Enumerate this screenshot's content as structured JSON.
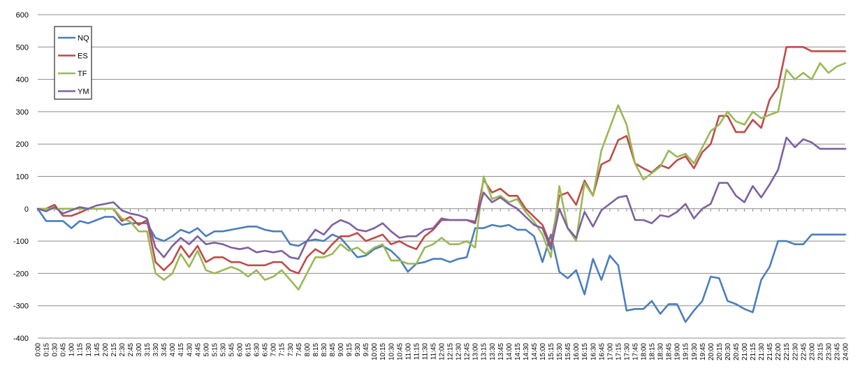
{
  "chart_data": {
    "type": "line",
    "title": "",
    "xlabel": "",
    "ylabel": "",
    "ylim": [
      -400,
      600
    ],
    "yticks": [
      -400,
      -300,
      -200,
      -100,
      0,
      100,
      200,
      300,
      400,
      500,
      600
    ],
    "grid": true,
    "legend_position": "top-left",
    "x": [
      "0:00",
      "0:15",
      "0:30",
      "0:45",
      "1:00",
      "1:15",
      "1:30",
      "1:45",
      "2:00",
      "2:15",
      "2:30",
      "2:45",
      "3:00",
      "3:15",
      "3:30",
      "3:45",
      "4:00",
      "4:15",
      "4:30",
      "4:45",
      "5:00",
      "5:15",
      "5:30",
      "5:45",
      "6:00",
      "6:15",
      "6:30",
      "6:45",
      "7:00",
      "7:15",
      "7:30",
      "7:45",
      "8:00",
      "8:15",
      "8:30",
      "8:45",
      "9:00",
      "9:15",
      "9:30",
      "9:45",
      "10:00",
      "10:15",
      "10:30",
      "10:45",
      "11:00",
      "11:15",
      "11:30",
      "11:45",
      "12:00",
      "12:15",
      "12:30",
      "12:45",
      "13:00",
      "13:15",
      "13:30",
      "13:45",
      "14:00",
      "14:15",
      "14:30",
      "14:45",
      "15:00",
      "15:15",
      "15:30",
      "15:45",
      "16:00",
      "16:15",
      "16:30",
      "16:45",
      "17:00",
      "17:15",
      "17:30",
      "17:45",
      "18:00",
      "18:15",
      "18:30",
      "18:45",
      "19:00",
      "19:15",
      "19:30",
      "19:45",
      "20:00",
      "20:15",
      "20:30",
      "20:45",
      "21:00",
      "21:15",
      "21:30",
      "21:45",
      "22:00",
      "22:15",
      "22:30",
      "22:45",
      "23:00",
      "23:15",
      "23:30",
      "23:45",
      "24:00"
    ],
    "series": [
      {
        "name": "NQ",
        "color": "#4a7ebb",
        "values": [
          0,
          -38,
          -38,
          -38,
          -60,
          -38,
          -45,
          -35,
          -25,
          -25,
          -50,
          -45,
          -45,
          -45,
          -90,
          -100,
          -85,
          -65,
          -75,
          -60,
          -85,
          -70,
          -70,
          -65,
          -60,
          -55,
          -55,
          -65,
          -70,
          -70,
          -110,
          -115,
          -100,
          -95,
          -100,
          -80,
          -90,
          -120,
          -150,
          -145,
          -125,
          -115,
          -130,
          -155,
          -195,
          -170,
          -165,
          -155,
          -155,
          -165,
          -155,
          -150,
          -60,
          -60,
          -50,
          -55,
          -50,
          -65,
          -65,
          -85,
          -165,
          -80,
          -195,
          -215,
          -190,
          -265,
          -155,
          -220,
          -145,
          -175,
          -315,
          -310,
          -310,
          -285,
          -325,
          -295,
          -295,
          -350,
          -315,
          -285,
          -210,
          -215,
          -285,
          -295,
          -310,
          -320,
          -220,
          -180,
          -100,
          -100,
          -110,
          -110,
          -80,
          -80,
          -80,
          -80,
          -80
        ]
      },
      {
        "name": "ES",
        "color": "#be4b48",
        "values": [
          0,
          0,
          12,
          -22,
          -22,
          -12,
          0,
          0,
          0,
          0,
          -38,
          -25,
          -50,
          -35,
          -165,
          -190,
          -165,
          -115,
          -150,
          -115,
          -165,
          -150,
          -150,
          -165,
          -165,
          -175,
          -175,
          -175,
          -165,
          -165,
          -190,
          -200,
          -150,
          -125,
          -140,
          -110,
          -85,
          -85,
          -75,
          -100,
          -90,
          -80,
          -110,
          -100,
          -115,
          -125,
          -85,
          -65,
          -35,
          -35,
          -35,
          -35,
          -45,
          90,
          50,
          62,
          40,
          40,
          0,
          -25,
          -50,
          -115,
          40,
          50,
          12,
          87,
          40,
          137,
          150,
          212,
          225,
          140,
          125,
          112,
          135,
          125,
          150,
          162,
          125,
          175,
          200,
          287,
          287,
          237,
          237,
          275,
          250,
          337,
          375,
          500,
          500,
          500,
          487,
          487,
          487,
          487,
          487
        ]
      },
      {
        "name": "TF",
        "color": "#98b954",
        "values": [
          0,
          0,
          0,
          0,
          0,
          0,
          0,
          0,
          0,
          0,
          -30,
          -40,
          -70,
          -70,
          -200,
          -220,
          -200,
          -140,
          -180,
          -130,
          -190,
          -200,
          -190,
          -180,
          -190,
          -210,
          -190,
          -220,
          -210,
          -190,
          -220,
          -250,
          -200,
          -150,
          -150,
          -140,
          -110,
          -130,
          -120,
          -140,
          -120,
          -110,
          -160,
          -160,
          -170,
          -170,
          -120,
          -110,
          -90,
          -110,
          -110,
          -100,
          -120,
          100,
          30,
          40,
          20,
          30,
          -10,
          -40,
          -80,
          -150,
          70,
          -60,
          -100,
          80,
          40,
          180,
          250,
          320,
          260,
          140,
          90,
          110,
          130,
          180,
          160,
          170,
          140,
          190,
          240,
          260,
          300,
          270,
          260,
          300,
          280,
          290,
          300,
          430,
          400,
          420,
          400,
          450,
          420,
          440,
          450
        ]
      },
      {
        "name": "YM",
        "color": "#7d60a0",
        "values": [
          0,
          -8,
          5,
          -15,
          -5,
          5,
          0,
          10,
          15,
          20,
          -5,
          -15,
          -20,
          -30,
          -120,
          -150,
          -115,
          -90,
          -110,
          -85,
          -110,
          -105,
          -110,
          -120,
          -125,
          -120,
          -135,
          -130,
          -135,
          -130,
          -150,
          -155,
          -100,
          -65,
          -80,
          -50,
          -35,
          -45,
          -65,
          -70,
          -60,
          -45,
          -70,
          -90,
          -85,
          -85,
          -65,
          -60,
          -30,
          -35,
          -35,
          -35,
          -40,
          50,
          20,
          35,
          15,
          0,
          -25,
          -50,
          -60,
          -125,
          0,
          -60,
          -90,
          -10,
          -55,
          -5,
          15,
          35,
          40,
          -35,
          -35,
          -45,
          -20,
          -25,
          -10,
          15,
          -30,
          0,
          15,
          80,
          80,
          40,
          20,
          70,
          35,
          75,
          120,
          220,
          190,
          215,
          205,
          185,
          185,
          185,
          185
        ]
      }
    ]
  }
}
